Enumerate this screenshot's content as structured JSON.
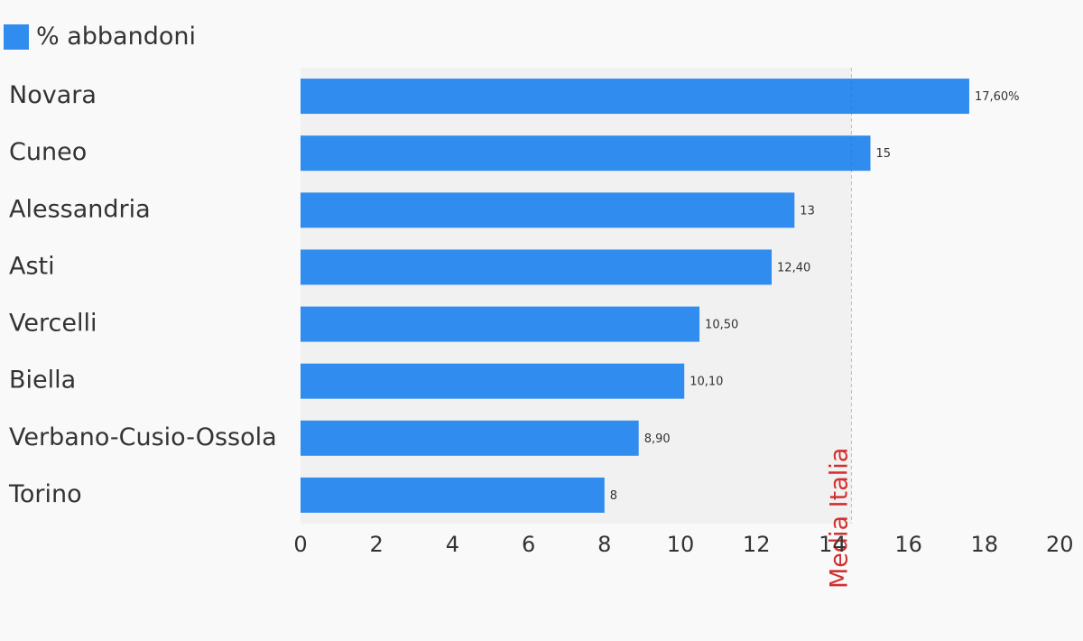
{
  "chart_data": {
    "type": "bar",
    "orientation": "horizontal",
    "categories": [
      "Novara",
      "Cuneo",
      "Alessandria",
      "Asti",
      "Vercelli",
      "Biella",
      "Verbano-Cusio-Ossola",
      "Torino"
    ],
    "series": [
      {
        "name": "% abbandoni",
        "values": [
          17.6,
          15,
          13,
          12.4,
          10.5,
          10.1,
          8.9,
          8
        ],
        "labels": [
          "17,60%",
          "15",
          "13",
          "12,40",
          "10,50",
          "10,10",
          "8,90",
          "8"
        ]
      }
    ],
    "xlim": [
      0,
      20
    ],
    "x_ticks": [
      0,
      2,
      4,
      6,
      8,
      10,
      12,
      14,
      16,
      18,
      20
    ],
    "reference_line": {
      "value": 14.5,
      "label": "Media Italia"
    },
    "legend_position": "top-left",
    "grid": false
  },
  "colors": {
    "bar": "#318cef",
    "reference": "#d32f2f",
    "plot_bg": "#f1f1f1",
    "text": "#333333"
  }
}
